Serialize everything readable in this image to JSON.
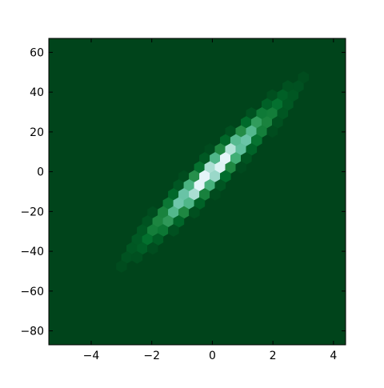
{
  "chart_data": {
    "type": "hexbin",
    "title": "",
    "xlabel": "",
    "ylabel": "",
    "xlim": [
      -5.4,
      4.4
    ],
    "ylim": [
      -87,
      67
    ],
    "xticks": [
      -4,
      -2,
      0,
      2,
      4
    ],
    "xtick_labels": [
      "−4",
      "−2",
      "0",
      "2",
      "4"
    ],
    "yticks": [
      -80,
      -60,
      -40,
      -20,
      0,
      20,
      40,
      60
    ],
    "ytick_labels": [
      "−80",
      "−60",
      "−40",
      "−20",
      "0",
      "20",
      "40",
      "60"
    ],
    "grid": false,
    "legend": "none",
    "colormap": "BuGn",
    "background_color": "#00441b",
    "distribution": {
      "description_of_shape": "bivariate normal density, strongly positively correlated",
      "x_mean": 0,
      "x_std": 1.0,
      "y_intercept": 0,
      "y_slope": 15,
      "y_noise_std": 4,
      "density_peak_at": [
        0,
        0
      ]
    }
  }
}
